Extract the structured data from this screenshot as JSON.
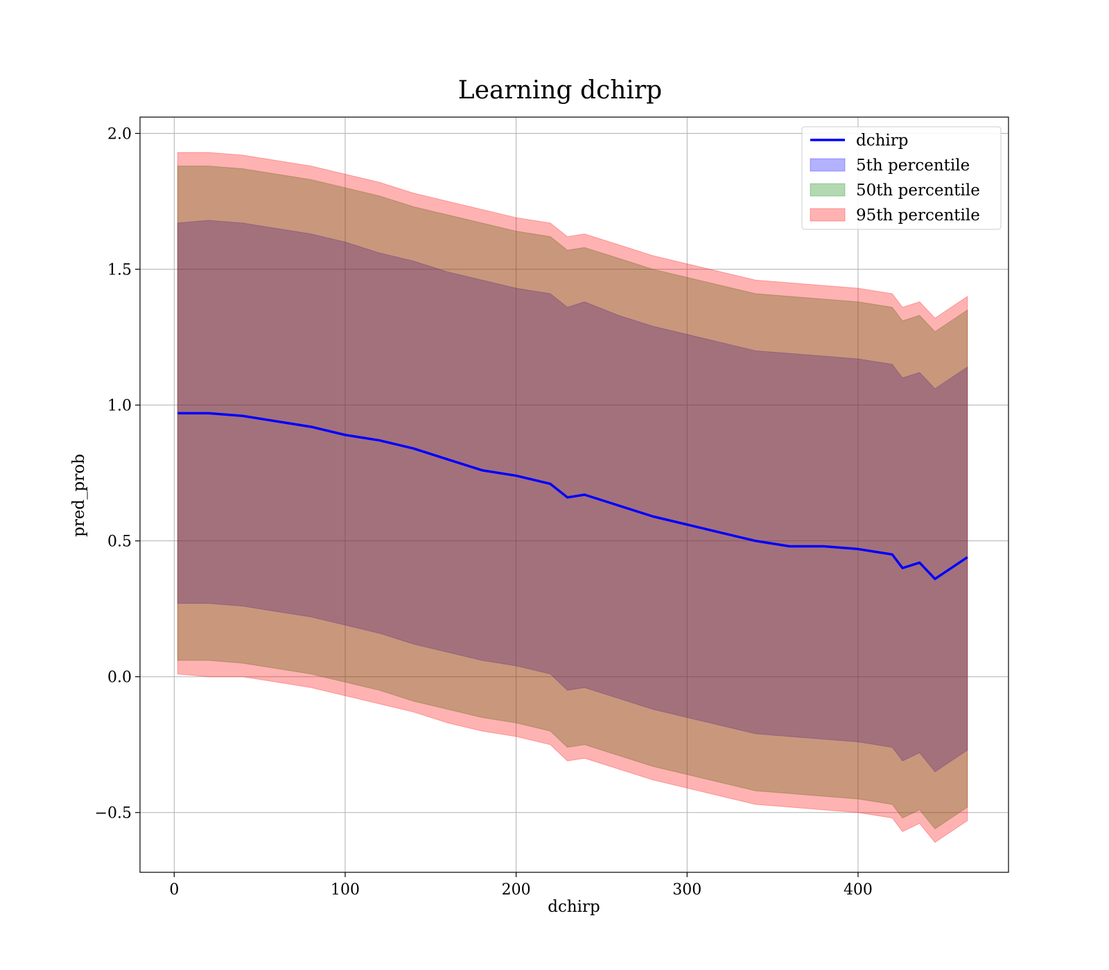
{
  "chart_data": {
    "type": "area",
    "title": "Learning dchirp",
    "xlabel": "dchirp",
    "ylabel": "pred_prob",
    "xlim": [
      -20,
      488
    ],
    "ylim": [
      -0.72,
      2.06
    ],
    "xticks": [
      0,
      100,
      200,
      300,
      400
    ],
    "xtick_labels": [
      "0",
      "100",
      "200",
      "300",
      "400"
    ],
    "yticks": [
      -0.5,
      0.0,
      0.5,
      1.0,
      1.5,
      2.0
    ],
    "ytick_labels": [
      "−0.5",
      "0.0",
      "0.5",
      "1.0",
      "1.5",
      "2.0"
    ],
    "grid": true,
    "legend_position": "top-right",
    "x": [
      2,
      20,
      40,
      60,
      80,
      100,
      120,
      140,
      160,
      180,
      200,
      220,
      230,
      240,
      260,
      280,
      300,
      320,
      340,
      360,
      380,
      400,
      420,
      426,
      436,
      445,
      464
    ],
    "series": [
      {
        "name": "dchirp",
        "kind": "line",
        "color": "#0000ff",
        "values": [
          0.97,
          0.97,
          0.96,
          0.94,
          0.92,
          0.89,
          0.87,
          0.84,
          0.8,
          0.76,
          0.74,
          0.71,
          0.66,
          0.67,
          0.63,
          0.59,
          0.56,
          0.53,
          0.5,
          0.48,
          0.48,
          0.47,
          0.45,
          0.4,
          0.42,
          0.36,
          0.44
        ]
      },
      {
        "name": "5th percentile",
        "kind": "band",
        "color": "#0000ff",
        "alpha": 0.3,
        "lower": [
          0.27,
          0.27,
          0.26,
          0.24,
          0.22,
          0.19,
          0.16,
          0.12,
          0.09,
          0.06,
          0.04,
          0.01,
          -0.05,
          -0.04,
          -0.08,
          -0.12,
          -0.15,
          -0.18,
          -0.21,
          -0.22,
          -0.23,
          -0.24,
          -0.26,
          -0.31,
          -0.28,
          -0.35,
          -0.27
        ],
        "upper": [
          1.67,
          1.68,
          1.67,
          1.65,
          1.63,
          1.6,
          1.56,
          1.53,
          1.49,
          1.46,
          1.43,
          1.41,
          1.36,
          1.38,
          1.33,
          1.29,
          1.26,
          1.23,
          1.2,
          1.19,
          1.18,
          1.17,
          1.15,
          1.1,
          1.12,
          1.06,
          1.14
        ]
      },
      {
        "name": "50th percentile",
        "kind": "band",
        "color": "#008000",
        "alpha": 0.3,
        "lower": [
          0.06,
          0.06,
          0.05,
          0.03,
          0.01,
          -0.02,
          -0.05,
          -0.09,
          -0.12,
          -0.15,
          -0.17,
          -0.2,
          -0.26,
          -0.25,
          -0.29,
          -0.33,
          -0.36,
          -0.39,
          -0.42,
          -0.43,
          -0.44,
          -0.45,
          -0.47,
          -0.52,
          -0.49,
          -0.56,
          -0.48
        ],
        "upper": [
          1.88,
          1.88,
          1.87,
          1.85,
          1.83,
          1.8,
          1.77,
          1.73,
          1.7,
          1.67,
          1.64,
          1.62,
          1.57,
          1.58,
          1.54,
          1.5,
          1.47,
          1.44,
          1.41,
          1.4,
          1.39,
          1.38,
          1.36,
          1.31,
          1.33,
          1.27,
          1.35
        ]
      },
      {
        "name": "95th percentile",
        "kind": "band",
        "color": "#ff0000",
        "alpha": 0.3,
        "lower": [
          0.01,
          0.0,
          0.0,
          -0.02,
          -0.04,
          -0.07,
          -0.1,
          -0.13,
          -0.17,
          -0.2,
          -0.22,
          -0.25,
          -0.31,
          -0.3,
          -0.34,
          -0.38,
          -0.41,
          -0.44,
          -0.47,
          -0.48,
          -0.49,
          -0.5,
          -0.52,
          -0.57,
          -0.54,
          -0.61,
          -0.53
        ],
        "upper": [
          1.93,
          1.93,
          1.92,
          1.9,
          1.88,
          1.85,
          1.82,
          1.78,
          1.75,
          1.72,
          1.69,
          1.67,
          1.62,
          1.63,
          1.59,
          1.55,
          1.52,
          1.49,
          1.46,
          1.45,
          1.44,
          1.43,
          1.41,
          1.36,
          1.38,
          1.32,
          1.4
        ]
      }
    ]
  }
}
